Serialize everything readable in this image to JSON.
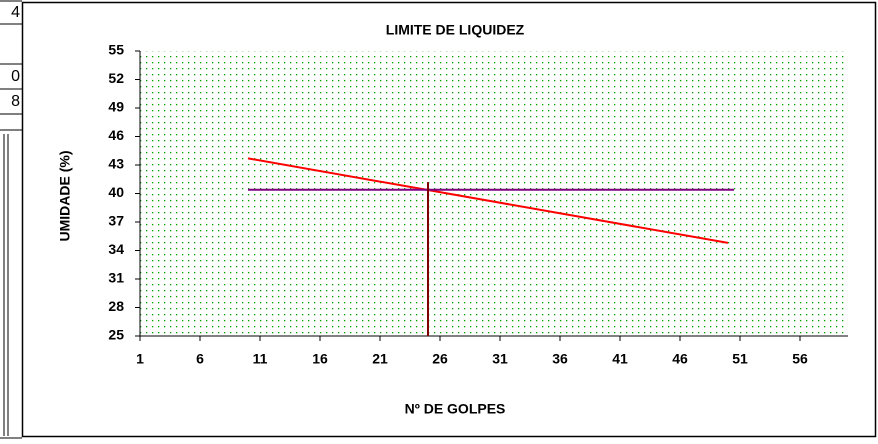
{
  "edge_cells": [
    "4",
    "0",
    "8"
  ],
  "chart_data": {
    "type": "line",
    "title": "LIMITE DE LIQUIDEZ",
    "xlabel": "Nº DE GOLPES",
    "ylabel": "UMIDADE (%)",
    "xlim": [
      1,
      60
    ],
    "xticks": [
      1,
      6,
      11,
      16,
      21,
      26,
      31,
      36,
      41,
      46,
      51,
      56
    ],
    "ylim": [
      25,
      55
    ],
    "yticks": [
      25,
      28,
      31,
      34,
      37,
      40,
      43,
      46,
      49,
      52,
      55
    ],
    "grid": true,
    "grid_color": "#00a000",
    "series": [
      {
        "color": "#ff0000",
        "x": [
          10,
          50
        ],
        "values": [
          43.7,
          34.8
        ]
      },
      {
        "color": "#800080",
        "x": [
          10,
          50.5
        ],
        "values": [
          40.4,
          40.4
        ]
      },
      {
        "color": "#800000",
        "x": [
          25,
          25
        ],
        "values": [
          41.2,
          25
        ]
      }
    ]
  }
}
